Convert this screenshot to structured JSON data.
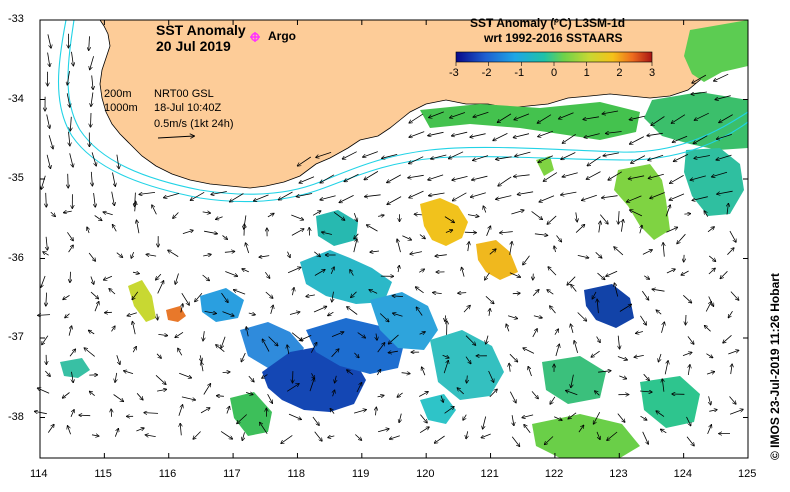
{
  "map": {
    "title_line1": "SST Anomaly",
    "title_line2": "20 Jul 2019",
    "argo_label": "Argo",
    "argo_marker_color": "#ff33ff",
    "scale_title_line1": "SST Anomaly (°C) L3SM-1d",
    "scale_title_line2": "wrt 1992-2016 SSTAARS",
    "scale_ticks": [
      "-3",
      "-2",
      "-1",
      "0",
      "1",
      "2",
      "3"
    ],
    "contour_labels": [
      "200m",
      "1000m"
    ],
    "source_line1": "NRT00 GSL",
    "source_line2": "18-Jul 10:40Z",
    "vector_scale_label": "0.5m/s (1kt 24h)",
    "credit": "© IMOS 23-Jul-2019 11:26 Hobart",
    "lon_ticks": [
      "114",
      "115",
      "116",
      "117",
      "118",
      "119",
      "120",
      "121",
      "122",
      "123",
      "124",
      "125"
    ],
    "lat_ticks": [
      "-33",
      "-34",
      "-35",
      "-36",
      "-37",
      "-38"
    ],
    "land_color": "#fdcc98",
    "contour_color": "#22d3e6",
    "colormap": [
      "#08088a",
      "#1e5fd0",
      "#1ea6e6",
      "#1fc2a8",
      "#6ed24a",
      "#c8d832",
      "#f5c21a",
      "#ee6c1e",
      "#a81414"
    ]
  }
}
